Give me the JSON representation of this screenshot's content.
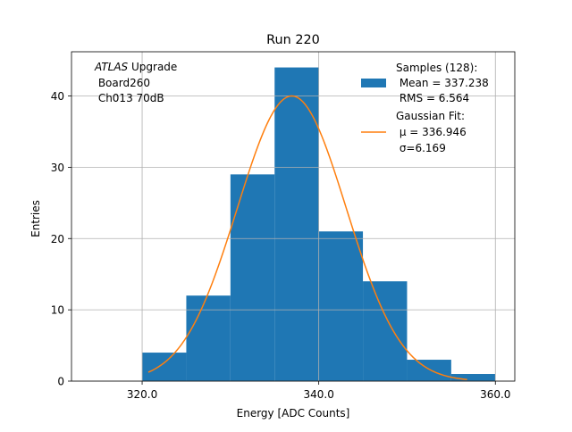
{
  "chart_data": {
    "type": "bar",
    "title": "Run 220",
    "xlabel": "Energy [ADC Counts]",
    "ylabel": "Entries",
    "xlim": [
      312.0,
      362.2
    ],
    "ylim": [
      0,
      46.2
    ],
    "xticks": [
      320.0,
      340.0,
      360.0
    ],
    "xtick_labels": [
      "320.0",
      "340.0",
      "360.0"
    ],
    "yticks": [
      0,
      10,
      20,
      30,
      40
    ],
    "ytick_labels": [
      "0",
      "10",
      "20",
      "30",
      "40"
    ],
    "grid": true,
    "bin_edges": [
      320,
      325,
      330,
      335,
      340,
      345,
      350,
      355,
      360
    ],
    "values": [
      4,
      12,
      29,
      44,
      21,
      14,
      3,
      1
    ],
    "bar_color": "#1f77b4",
    "fit": {
      "amplitude": 40.0,
      "mu": 336.946,
      "sigma": 6.169,
      "x_range": [
        320.7,
        356.8
      ],
      "color": "#ff7f0e"
    },
    "annotation": {
      "atlas": "ATLAS",
      "rest": " Upgrade",
      "line2": " Board260",
      "line3": " Ch013 70dB"
    },
    "legend": {
      "position": "upper right",
      "samples": [
        "Samples (128):",
        " Mean = 337.238",
        " RMS = 6.564"
      ],
      "fit": [
        "Gaussian Fit:",
        " μ = 336.946",
        " σ=6.169"
      ]
    }
  }
}
